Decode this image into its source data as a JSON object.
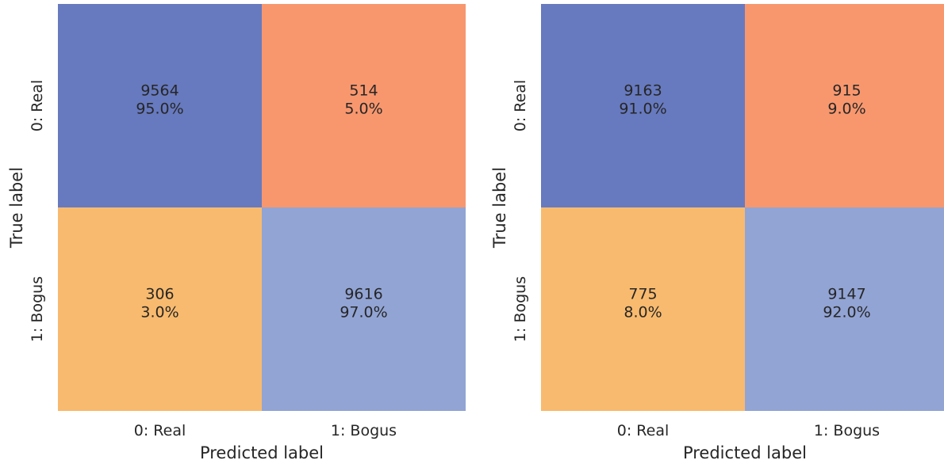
{
  "chart_data": [
    {
      "type": "heatmap",
      "xlabel": "Predicted label",
      "ylabel": "True label",
      "x_categories": [
        "0: Real",
        "1: Bogus"
      ],
      "y_categories": [
        "0: Real",
        "1: Bogus"
      ],
      "cells": [
        [
          {
            "count": "9564",
            "percent": "95.0%",
            "color": "#677abf"
          },
          {
            "count": "514",
            "percent": "5.0%",
            "color": "#f8976e"
          }
        ],
        [
          {
            "count": "306",
            "percent": "3.0%",
            "color": "#f8ba6e"
          },
          {
            "count": "9616",
            "percent": "97.0%",
            "color": "#92a4d4"
          }
        ]
      ]
    },
    {
      "type": "heatmap",
      "xlabel": "Predicted label",
      "ylabel": "True label",
      "x_categories": [
        "0: Real",
        "1: Bogus"
      ],
      "y_categories": [
        "0: Real",
        "1: Bogus"
      ],
      "cells": [
        [
          {
            "count": "9163",
            "percent": "91.0%",
            "color": "#677abf"
          },
          {
            "count": "915",
            "percent": "9.0%",
            "color": "#f8976e"
          }
        ],
        [
          {
            "count": "775",
            "percent": "8.0%",
            "color": "#f8ba6e"
          },
          {
            "count": "9147",
            "percent": "92.0%",
            "color": "#92a4d4"
          }
        ]
      ]
    }
  ]
}
